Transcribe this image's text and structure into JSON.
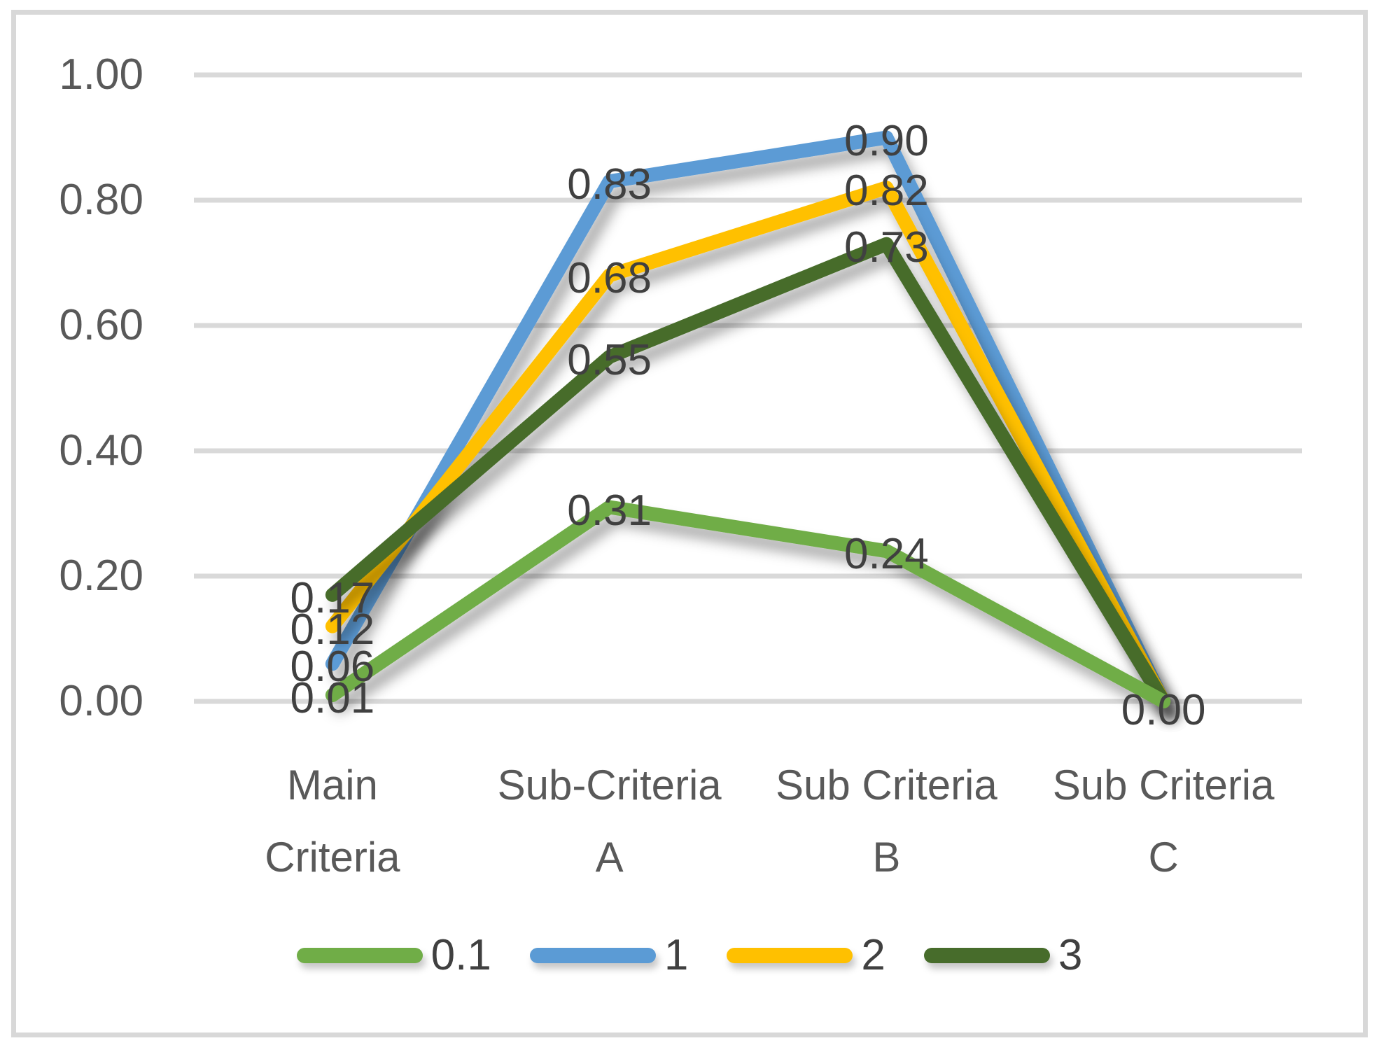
{
  "frame": {
    "border_color": "#D8D8D8",
    "background": "#FFFFFF"
  },
  "chart_data": {
    "type": "line",
    "title": "",
    "categories": [
      "Main Criteria",
      "Sub-Criteria A",
      "Sub Criteria B",
      "Sub Criteria C"
    ],
    "category_label_lines": [
      [
        "Main",
        "Criteria"
      ],
      [
        "Sub-Criteria",
        "A"
      ],
      [
        "Sub Criteria",
        "B"
      ],
      [
        "Sub Criteria",
        "C"
      ]
    ],
    "series": [
      {
        "name": "0.1",
        "color": "#70AD47",
        "values": [
          0.01,
          0.31,
          0.24,
          0.0
        ]
      },
      {
        "name": "1",
        "color": "#5B9BD5",
        "values": [
          0.06,
          0.83,
          0.9,
          0.0
        ]
      },
      {
        "name": "2",
        "color": "#FFC000",
        "values": [
          0.12,
          0.68,
          0.82,
          0.0
        ]
      },
      {
        "name": "3",
        "color": "#476C2B",
        "values": [
          0.17,
          0.55,
          0.73,
          0.0
        ]
      }
    ],
    "data_labels": {
      "show": true,
      "position": "center",
      "color": "#404040",
      "shared_end_label": "0.00"
    },
    "y_axis": {
      "ticks": [
        "1.00",
        "0.80",
        "0.60",
        "0.40",
        "0.20",
        "0.00"
      ],
      "min": 0.0,
      "max": 1.0,
      "color": "#595959"
    },
    "x_axis": {
      "color": "#595959"
    },
    "ylim": [
      0.0,
      1.0
    ],
    "grid": true,
    "gridline_color": "#D9D9D9",
    "legend_position": "bottom"
  }
}
